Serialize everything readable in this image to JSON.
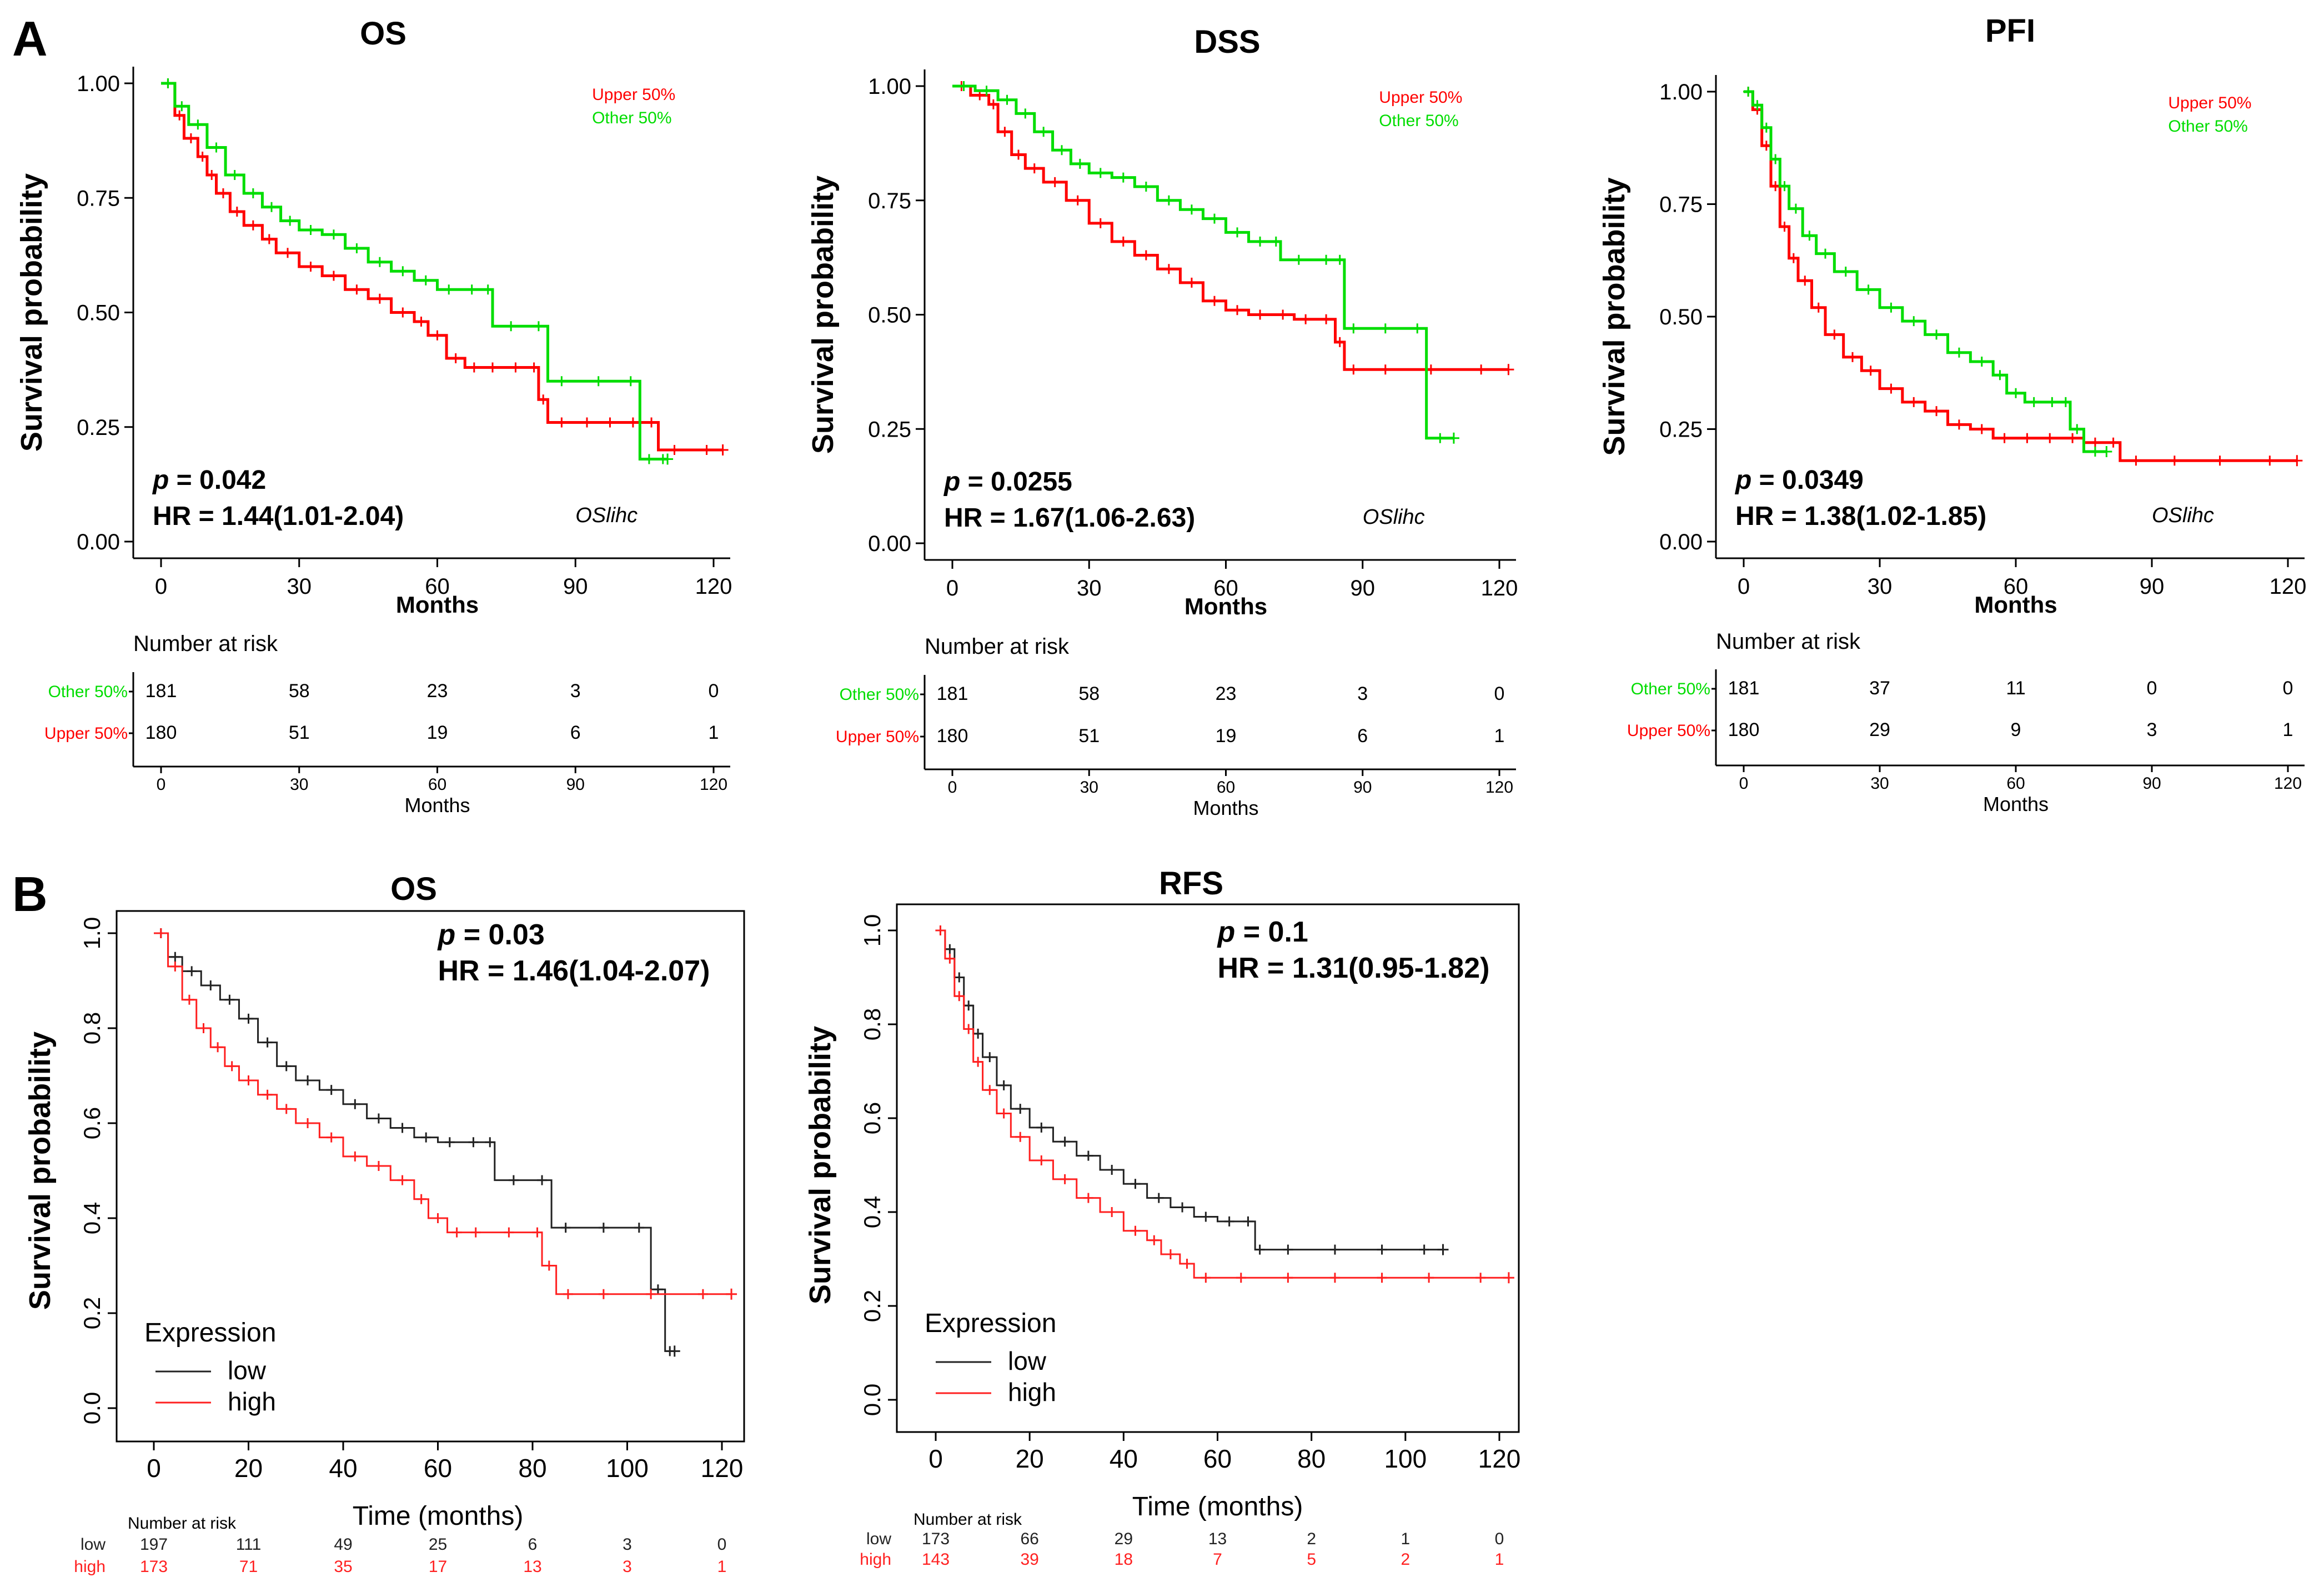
{
  "figure": {
    "panel_letters": [
      "A",
      "B"
    ]
  },
  "colors": {
    "upper": "#ff0000",
    "other": "#00dd00",
    "low": "#222222",
    "high": "#ff2020",
    "axis": "#000000"
  },
  "chart_data": [
    {
      "id": "A1",
      "panel": "A",
      "type": "line",
      "style": "tcga",
      "title": "OS",
      "xlabel": "Months",
      "ylabel": "Survival probability",
      "xlim": [
        0,
        120
      ],
      "ylim": [
        0,
        1
      ],
      "xticks": [
        "0",
        "30",
        "60",
        "90",
        "120"
      ],
      "yticks": [
        "0.00",
        "0.25",
        "0.50",
        "0.75",
        "1.00"
      ],
      "legend": [
        "Upper 50%",
        "Other  50%"
      ],
      "p_label": "p",
      "p_value": "= 0.042",
      "hr": "HR = 1.44(1.01-2.04)",
      "tag": "OSlihc",
      "series": [
        {
          "name": "Upper 50%",
          "color": "upper",
          "x": [
            0,
            3,
            5,
            8,
            10,
            12,
            15,
            18,
            22,
            25,
            30,
            35,
            40,
            45,
            50,
            55,
            58,
            62,
            66,
            70,
            74,
            80,
            82,
            84,
            90,
            95,
            100,
            105,
            108,
            115,
            122
          ],
          "y": [
            1.0,
            0.93,
            0.88,
            0.84,
            0.8,
            0.76,
            0.72,
            0.69,
            0.66,
            0.63,
            0.6,
            0.58,
            0.55,
            0.53,
            0.5,
            0.48,
            0.45,
            0.4,
            0.38,
            0.38,
            0.38,
            0.38,
            0.31,
            0.26,
            0.26,
            0.26,
            0.26,
            0.26,
            0.2,
            0.2,
            0.2
          ]
        },
        {
          "name": "Other  50%",
          "color": "other",
          "x": [
            0,
            3,
            6,
            10,
            14,
            18,
            22,
            26,
            30,
            35,
            40,
            45,
            50,
            55,
            60,
            65,
            70,
            72,
            80,
            84,
            90,
            100,
            104,
            108,
            110
          ],
          "y": [
            1.0,
            0.95,
            0.91,
            0.86,
            0.8,
            0.76,
            0.73,
            0.7,
            0.68,
            0.67,
            0.64,
            0.61,
            0.59,
            0.57,
            0.55,
            0.55,
            0.55,
            0.47,
            0.47,
            0.35,
            0.35,
            0.35,
            0.18,
            0.18,
            0.18
          ]
        }
      ],
      "risk": {
        "title": "Number at risk",
        "xlabel": "Months",
        "rows": [
          {
            "label": "Other 50%",
            "color": "other",
            "values": [
              "181",
              "58",
              "23",
              "3",
              "0"
            ]
          },
          {
            "label": "Upper 50%",
            "color": "upper",
            "values": [
              "180",
              "51",
              "19",
              "6",
              "1"
            ]
          }
        ]
      }
    },
    {
      "id": "A2",
      "panel": "A",
      "type": "line",
      "style": "tcga",
      "title": "DSS",
      "xlabel": "Months",
      "ylabel": "Survival probability",
      "xlim": [
        0,
        120
      ],
      "ylim": [
        0,
        1
      ],
      "xticks": [
        "0",
        "30",
        "60",
        "90",
        "120"
      ],
      "yticks": [
        "0.00",
        "0.25",
        "0.50",
        "0.75",
        "1.00"
      ],
      "legend": [
        "Upper 50%",
        "Other  50%"
      ],
      "p_label": "p",
      "p_value": "= 0.0255",
      "hr": "HR = 1.67(1.06-2.63)",
      "tag": "OSlihc",
      "series": [
        {
          "name": "Upper 50%",
          "color": "upper",
          "x": [
            0,
            4,
            8,
            10,
            13,
            16,
            20,
            25,
            30,
            35,
            40,
            45,
            50,
            55,
            60,
            65,
            70,
            75,
            80,
            84,
            86,
            90,
            100,
            110,
            122
          ],
          "y": [
            1.0,
            0.98,
            0.96,
            0.9,
            0.85,
            0.82,
            0.79,
            0.75,
            0.7,
            0.66,
            0.63,
            0.6,
            0.57,
            0.53,
            0.51,
            0.5,
            0.5,
            0.49,
            0.49,
            0.44,
            0.38,
            0.38,
            0.38,
            0.38,
            0.38
          ]
        },
        {
          "name": "Other  50%",
          "color": "other",
          "x": [
            0,
            5,
            10,
            14,
            18,
            22,
            26,
            30,
            35,
            40,
            45,
            50,
            55,
            60,
            65,
            70,
            72,
            80,
            84,
            86,
            90,
            100,
            104,
            110
          ],
          "y": [
            1.0,
            0.99,
            0.97,
            0.94,
            0.9,
            0.86,
            0.83,
            0.81,
            0.8,
            0.78,
            0.75,
            0.73,
            0.71,
            0.68,
            0.66,
            0.66,
            0.62,
            0.62,
            0.62,
            0.47,
            0.47,
            0.47,
            0.23,
            0.23
          ]
        }
      ],
      "risk": {
        "title": "Number at risk",
        "xlabel": "Months",
        "rows": [
          {
            "label": "Other 50%",
            "color": "other",
            "values": [
              "181",
              "58",
              "23",
              "3",
              "0"
            ]
          },
          {
            "label": "Upper 50%",
            "color": "upper",
            "values": [
              "180",
              "51",
              "19",
              "6",
              "1"
            ]
          }
        ]
      }
    },
    {
      "id": "A3",
      "panel": "A",
      "type": "line",
      "style": "tcga",
      "title": "PFI",
      "xlabel": "Months",
      "ylabel": "Survival probability",
      "xlim": [
        0,
        120
      ],
      "ylim": [
        0,
        1
      ],
      "xticks": [
        "0",
        "30",
        "60",
        "90",
        "120"
      ],
      "yticks": [
        "0.00",
        "0.25",
        "0.50",
        "0.75",
        "1.00"
      ],
      "legend": [
        "Upper 50%",
        "Other  50%"
      ],
      "p_label": "p",
      "p_value": "= 0.0349",
      "hr": "HR = 1.38(1.02-1.85)",
      "tag": "OSlihc",
      "series": [
        {
          "name": "Upper 50%",
          "color": "upper",
          "x": [
            0,
            2,
            4,
            6,
            8,
            10,
            12,
            15,
            18,
            22,
            26,
            30,
            35,
            40,
            45,
            50,
            55,
            60,
            65,
            70,
            75,
            80,
            83,
            90,
            100,
            110,
            122
          ],
          "y": [
            1.0,
            0.96,
            0.88,
            0.79,
            0.7,
            0.63,
            0.58,
            0.52,
            0.46,
            0.41,
            0.38,
            0.34,
            0.31,
            0.29,
            0.26,
            0.25,
            0.23,
            0.23,
            0.23,
            0.23,
            0.22,
            0.22,
            0.18,
            0.18,
            0.18,
            0.18,
            0.18
          ]
        },
        {
          "name": "Other  50%",
          "color": "other",
          "x": [
            0,
            2,
            4,
            6,
            8,
            10,
            13,
            16,
            20,
            25,
            30,
            35,
            40,
            45,
            50,
            55,
            58,
            62,
            66,
            70,
            72,
            75,
            80
          ],
          "y": [
            1.0,
            0.97,
            0.92,
            0.85,
            0.79,
            0.74,
            0.68,
            0.64,
            0.6,
            0.56,
            0.52,
            0.49,
            0.46,
            0.42,
            0.4,
            0.37,
            0.33,
            0.31,
            0.31,
            0.31,
            0.25,
            0.2,
            0.2
          ]
        }
      ],
      "risk": {
        "title": "Number at risk",
        "xlabel": "Months",
        "rows": [
          {
            "label": "Other 50%",
            "color": "other",
            "values": [
              "181",
              "37",
              "11",
              "0",
              "0"
            ]
          },
          {
            "label": "Upper 50%",
            "color": "upper",
            "values": [
              "180",
              "29",
              "9",
              "3",
              "1"
            ]
          }
        ]
      }
    },
    {
      "id": "B1",
      "panel": "B",
      "type": "line",
      "style": "kmplot",
      "title": "OS",
      "xlabel": "Time (months)",
      "ylabel": "Survival probability",
      "xlim": [
        0,
        120
      ],
      "ylim": [
        0,
        1
      ],
      "xticks": [
        "0",
        "20",
        "40",
        "60",
        "80",
        "100",
        "120"
      ],
      "yticks": [
        "0.0",
        "0.2",
        "0.4",
        "0.6",
        "0.8",
        "1.0"
      ],
      "legend_title": "Expression",
      "legend": [
        "low",
        "high"
      ],
      "p_label": "p",
      "p_value": "= 0.03",
      "hr": "HR = 1.46(1.04-2.07)",
      "series": [
        {
          "name": "low",
          "color": "low",
          "x": [
            0,
            3,
            6,
            10,
            14,
            18,
            22,
            26,
            30,
            35,
            40,
            45,
            50,
            55,
            60,
            65,
            70,
            72,
            80,
            84,
            90,
            100,
            105,
            108,
            110
          ],
          "y": [
            1.0,
            0.95,
            0.92,
            0.89,
            0.86,
            0.82,
            0.77,
            0.72,
            0.69,
            0.67,
            0.64,
            0.61,
            0.59,
            0.57,
            0.56,
            0.56,
            0.56,
            0.48,
            0.48,
            0.38,
            0.38,
            0.38,
            0.25,
            0.12,
            0.12
          ]
        },
        {
          "name": "high",
          "color": "high",
          "x": [
            0,
            3,
            6,
            9,
            12,
            15,
            18,
            22,
            26,
            30,
            35,
            40,
            45,
            50,
            55,
            58,
            62,
            66,
            70,
            80,
            82,
            85,
            90,
            100,
            110,
            122
          ],
          "y": [
            1.0,
            0.93,
            0.86,
            0.8,
            0.76,
            0.72,
            0.69,
            0.66,
            0.63,
            0.6,
            0.57,
            0.53,
            0.51,
            0.48,
            0.44,
            0.4,
            0.37,
            0.37,
            0.37,
            0.37,
            0.3,
            0.24,
            0.24,
            0.24,
            0.24,
            0.24
          ]
        }
      ],
      "risk": {
        "title": "Number at risk",
        "rows": [
          {
            "label": "low",
            "color": "low",
            "values": [
              "197",
              "111",
              "49",
              "25",
              "6",
              "3",
              "0"
            ]
          },
          {
            "label": "high",
            "color": "high",
            "values": [
              "173",
              "71",
              "35",
              "17",
              "13",
              "3",
              "1"
            ]
          }
        ]
      }
    },
    {
      "id": "B2",
      "panel": "B",
      "type": "line",
      "style": "kmplot",
      "title": "RFS",
      "xlabel": "Time (months)",
      "ylabel": "Survival probability",
      "xlim": [
        0,
        120
      ],
      "ylim": [
        0,
        1
      ],
      "xticks": [
        "0",
        "20",
        "40",
        "60",
        "80",
        "100",
        "120"
      ],
      "yticks": [
        "0.0",
        "0.2",
        "0.4",
        "0.6",
        "0.8",
        "1.0"
      ],
      "legend_title": "Expression",
      "legend": [
        "low",
        "high"
      ],
      "p_label": "p",
      "p_value": "= 0.1",
      "hr": "HR = 1.31(0.95-1.82)",
      "series": [
        {
          "name": "low",
          "color": "low",
          "x": [
            0,
            2,
            4,
            6,
            8,
            10,
            13,
            16,
            20,
            25,
            30,
            35,
            40,
            45,
            50,
            55,
            60,
            65,
            68,
            70,
            80,
            90,
            100,
            108
          ],
          "y": [
            1.0,
            0.96,
            0.9,
            0.84,
            0.78,
            0.73,
            0.67,
            0.62,
            0.58,
            0.55,
            0.52,
            0.49,
            0.46,
            0.43,
            0.41,
            0.39,
            0.38,
            0.38,
            0.32,
            0.32,
            0.32,
            0.32,
            0.32,
            0.32
          ]
        },
        {
          "name": "high",
          "color": "high",
          "x": [
            0,
            2,
            4,
            6,
            8,
            10,
            13,
            16,
            20,
            25,
            30,
            35,
            40,
            45,
            48,
            52,
            55,
            60,
            70,
            80,
            90,
            100,
            110,
            122
          ],
          "y": [
            1.0,
            0.94,
            0.86,
            0.79,
            0.72,
            0.66,
            0.61,
            0.56,
            0.51,
            0.47,
            0.43,
            0.4,
            0.36,
            0.34,
            0.31,
            0.29,
            0.26,
            0.26,
            0.26,
            0.26,
            0.26,
            0.26,
            0.26,
            0.26
          ]
        }
      ],
      "risk": {
        "title": "Number at risk",
        "rows": [
          {
            "label": "low",
            "color": "low",
            "values": [
              "173",
              "66",
              "29",
              "13",
              "2",
              "1",
              "0"
            ]
          },
          {
            "label": "high",
            "color": "high",
            "values": [
              "143",
              "39",
              "18",
              "7",
              "5",
              "2",
              "1"
            ]
          }
        ]
      }
    }
  ]
}
